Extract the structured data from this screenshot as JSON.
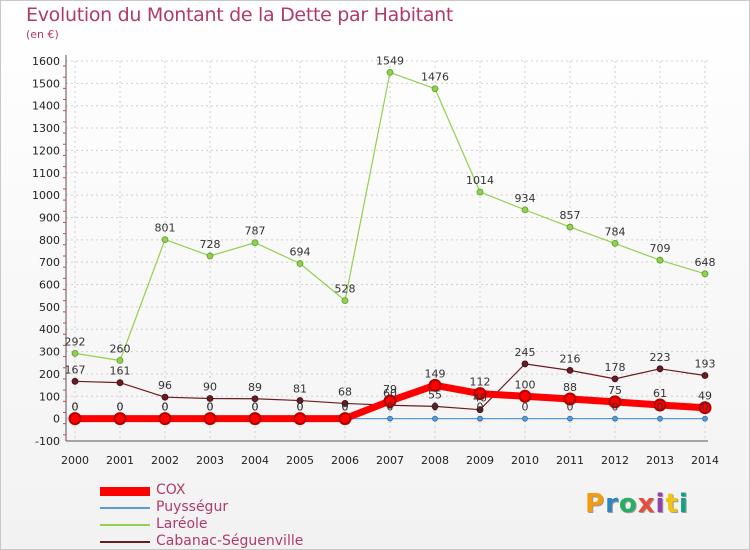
{
  "chart_data": {
    "type": "line",
    "title": "Evolution du Montant de la Dette par Habitant",
    "unit_label": "(en €)",
    "x": [
      "2000",
      "2001",
      "2002",
      "2003",
      "2004",
      "2005",
      "2006",
      "2007",
      "2008",
      "2009",
      "2010",
      "2011",
      "2012",
      "2013",
      "2014"
    ],
    "ylim": [
      -100,
      1600
    ],
    "yticks": [
      -100,
      0,
      100,
      200,
      300,
      400,
      500,
      600,
      700,
      800,
      900,
      1000,
      1100,
      1200,
      1300,
      1400,
      1500,
      1600
    ],
    "grid": true,
    "legend_position": "bottom-left",
    "series": [
      {
        "name": "COX",
        "color": "#ff0000",
        "values": [
          0,
          0,
          0,
          0,
          0,
          0,
          0,
          79,
          149,
          112,
          100,
          88,
          75,
          61,
          49
        ]
      },
      {
        "name": "Puysségur",
        "color": "#5b9bd5",
        "values": [
          0,
          0,
          0,
          0,
          0,
          0,
          0,
          0,
          0,
          0,
          0,
          0,
          0,
          0,
          0
        ]
      },
      {
        "name": "Laréole",
        "color": "#92d050",
        "values": [
          292,
          260,
          801,
          728,
          787,
          694,
          528,
          1549,
          1476,
          1014,
          934,
          857,
          784,
          709,
          648
        ]
      },
      {
        "name": "Cabanac-Séguenville",
        "color": "#6b1c22",
        "values": [
          167,
          161,
          96,
          90,
          89,
          81,
          68,
          60,
          55,
          40,
          245,
          216,
          178,
          223,
          193
        ]
      }
    ]
  },
  "logo": {
    "text": "Proxiti"
  }
}
